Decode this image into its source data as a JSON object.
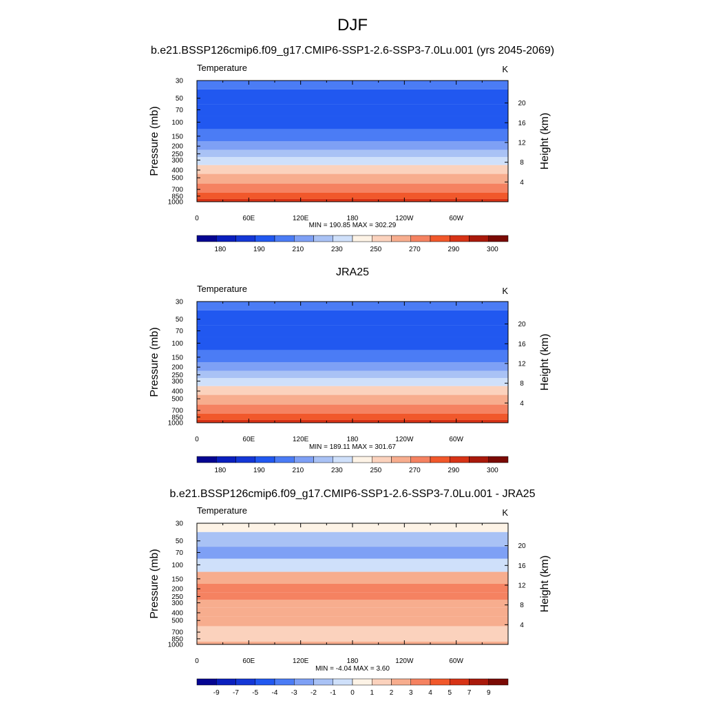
{
  "figure": {
    "title": "DJF"
  },
  "palette": [
    "#050591",
    "#0a1fbe",
    "#1437d6",
    "#2158f0",
    "#4b7cf5",
    "#7ea0f5",
    "#a9c2f5",
    "#cfe0fa",
    "#fdf3e6",
    "#fbd2bd",
    "#f7ad8e",
    "#f58261",
    "#f1582b",
    "#d73316",
    "#a9190b",
    "#7a0a04"
  ],
  "panels": [
    {
      "id": "model",
      "title": "b.e21.BSSP126cmip6.f09_g17.CMIP6-SSP1-2.6-SSP3-7.0Lu.001 (yrs 2045-2069)",
      "variable": "Temperature",
      "units": "K",
      "min_max": "MIN = 190.85  MAX = 302.29",
      "colorbar_labels": [
        "180",
        "190",
        "210",
        "230",
        "250",
        "270",
        "290",
        "300"
      ]
    },
    {
      "id": "obs",
      "title": "JRA25",
      "variable": "Temperature",
      "units": "K",
      "min_max": "MIN = 189.11  MAX = 301.67",
      "colorbar_labels": [
        "180",
        "190",
        "210",
        "230",
        "250",
        "270",
        "290",
        "300"
      ]
    },
    {
      "id": "diff",
      "title": "b.e21.BSSP126cmip6.f09_g17.CMIP6-SSP1-2.6-SSP3-7.0Lu.001 - JRA25",
      "variable": "Temperature",
      "units": "K",
      "min_max": "MIN =  -4.04  MAX =   3.60",
      "colorbar_labels": [
        "-9",
        "-7",
        "-5",
        "-4",
        "-3",
        "-2",
        "-1",
        "0",
        "1",
        "2",
        "3",
        "4",
        "5",
        "7",
        "9"
      ]
    }
  ],
  "chart_data": [
    {
      "type": "heatmap",
      "title": "b.e21.BSSP126cmip6.f09_g17.CMIP6-SSP1-2.6-SSP3-7.0Lu.001 (yrs 2045-2069)",
      "subtitle": "Temperature",
      "units": "K",
      "xlabel": "",
      "ylabel": "Pressure (mb)",
      "ylabel_right": "Height (km)",
      "x_ticks": [
        "0",
        "60E",
        "120E",
        "180",
        "120W",
        "60W"
      ],
      "x_tick_lon": [
        0,
        60,
        120,
        180,
        240,
        300
      ],
      "xlim": [
        0,
        360
      ],
      "y_ticks": [
        "30",
        "50",
        "70",
        "100",
        "150",
        "200",
        "250",
        "300",
        "400",
        "500",
        "700",
        "850",
        "1000"
      ],
      "ylim": [
        1000,
        30
      ],
      "right_ticks": [
        "4",
        "8",
        "12",
        "16",
        "20"
      ],
      "contour_levels": [
        180,
        185,
        190,
        200,
        210,
        220,
        230,
        240,
        250,
        260,
        270,
        280,
        290,
        295,
        300
      ],
      "profile": [
        {
          "pressure": 30,
          "level_index": 4
        },
        {
          "pressure": 50,
          "level_index": 3
        },
        {
          "pressure": 70,
          "level_index": 3
        },
        {
          "pressure": 100,
          "level_index": 3
        },
        {
          "pressure": 150,
          "level_index": 4
        },
        {
          "pressure": 200,
          "level_index": 5
        },
        {
          "pressure": 250,
          "level_index": 6
        },
        {
          "pressure": 300,
          "level_index": 7
        },
        {
          "pressure": 400,
          "level_index": 9
        },
        {
          "pressure": 500,
          "level_index": 10
        },
        {
          "pressure": 700,
          "level_index": 11
        },
        {
          "pressure": 850,
          "level_index": 12
        },
        {
          "pressure": 1000,
          "level_index": 13
        }
      ],
      "min": 190.85,
      "max": 302.29
    },
    {
      "type": "heatmap",
      "title": "JRA25",
      "subtitle": "Temperature",
      "units": "K",
      "xlabel": "",
      "ylabel": "Pressure (mb)",
      "ylabel_right": "Height (km)",
      "x_ticks": [
        "0",
        "60E",
        "120E",
        "180",
        "120W",
        "60W"
      ],
      "x_tick_lon": [
        0,
        60,
        120,
        180,
        240,
        300
      ],
      "xlim": [
        0,
        360
      ],
      "y_ticks": [
        "30",
        "50",
        "70",
        "100",
        "150",
        "200",
        "250",
        "300",
        "400",
        "500",
        "700",
        "850",
        "1000"
      ],
      "ylim": [
        1000,
        30
      ],
      "right_ticks": [
        "4",
        "8",
        "12",
        "16",
        "20"
      ],
      "contour_levels": [
        180,
        185,
        190,
        200,
        210,
        220,
        230,
        240,
        250,
        260,
        270,
        280,
        290,
        295,
        300
      ],
      "profile": [
        {
          "pressure": 30,
          "level_index": 4
        },
        {
          "pressure": 50,
          "level_index": 3
        },
        {
          "pressure": 70,
          "level_index": 3
        },
        {
          "pressure": 100,
          "level_index": 3
        },
        {
          "pressure": 150,
          "level_index": 4
        },
        {
          "pressure": 200,
          "level_index": 5
        },
        {
          "pressure": 250,
          "level_index": 6
        },
        {
          "pressure": 300,
          "level_index": 7
        },
        {
          "pressure": 400,
          "level_index": 9
        },
        {
          "pressure": 500,
          "level_index": 10
        },
        {
          "pressure": 700,
          "level_index": 11
        },
        {
          "pressure": 850,
          "level_index": 12
        },
        {
          "pressure": 1000,
          "level_index": 13
        }
      ],
      "min": 189.11,
      "max": 301.67
    },
    {
      "type": "heatmap",
      "title": "b.e21.BSSP126cmip6.f09_g17.CMIP6-SSP1-2.6-SSP3-7.0Lu.001 - JRA25",
      "subtitle": "Temperature",
      "units": "K",
      "xlabel": "",
      "ylabel": "Pressure (mb)",
      "ylabel_right": "Height (km)",
      "x_ticks": [
        "0",
        "60E",
        "120E",
        "180",
        "120W",
        "60W"
      ],
      "x_tick_lon": [
        0,
        60,
        120,
        180,
        240,
        300
      ],
      "xlim": [
        0,
        360
      ],
      "y_ticks": [
        "30",
        "50",
        "70",
        "100",
        "150",
        "200",
        "250",
        "300",
        "400",
        "500",
        "700",
        "850",
        "1000"
      ],
      "ylim": [
        1000,
        30
      ],
      "right_ticks": [
        "4",
        "8",
        "12",
        "16",
        "20"
      ],
      "contour_levels": [
        -9,
        -7,
        -5,
        -4,
        -3,
        -2,
        -1,
        0,
        1,
        2,
        3,
        4,
        5,
        7,
        9
      ],
      "profile": [
        {
          "pressure": 30,
          "level_index": 8
        },
        {
          "pressure": 50,
          "level_index": 6
        },
        {
          "pressure": 70,
          "level_index": 5
        },
        {
          "pressure": 100,
          "level_index": 7
        },
        {
          "pressure": 150,
          "level_index": 10
        },
        {
          "pressure": 200,
          "level_index": 11
        },
        {
          "pressure": 250,
          "level_index": 11
        },
        {
          "pressure": 300,
          "level_index": 10
        },
        {
          "pressure": 400,
          "level_index": 10
        },
        {
          "pressure": 500,
          "level_index": 10
        },
        {
          "pressure": 700,
          "level_index": 9
        },
        {
          "pressure": 850,
          "level_index": 9
        },
        {
          "pressure": 1000,
          "level_index": 10
        }
      ],
      "min": -4.04,
      "max": 3.6
    }
  ]
}
